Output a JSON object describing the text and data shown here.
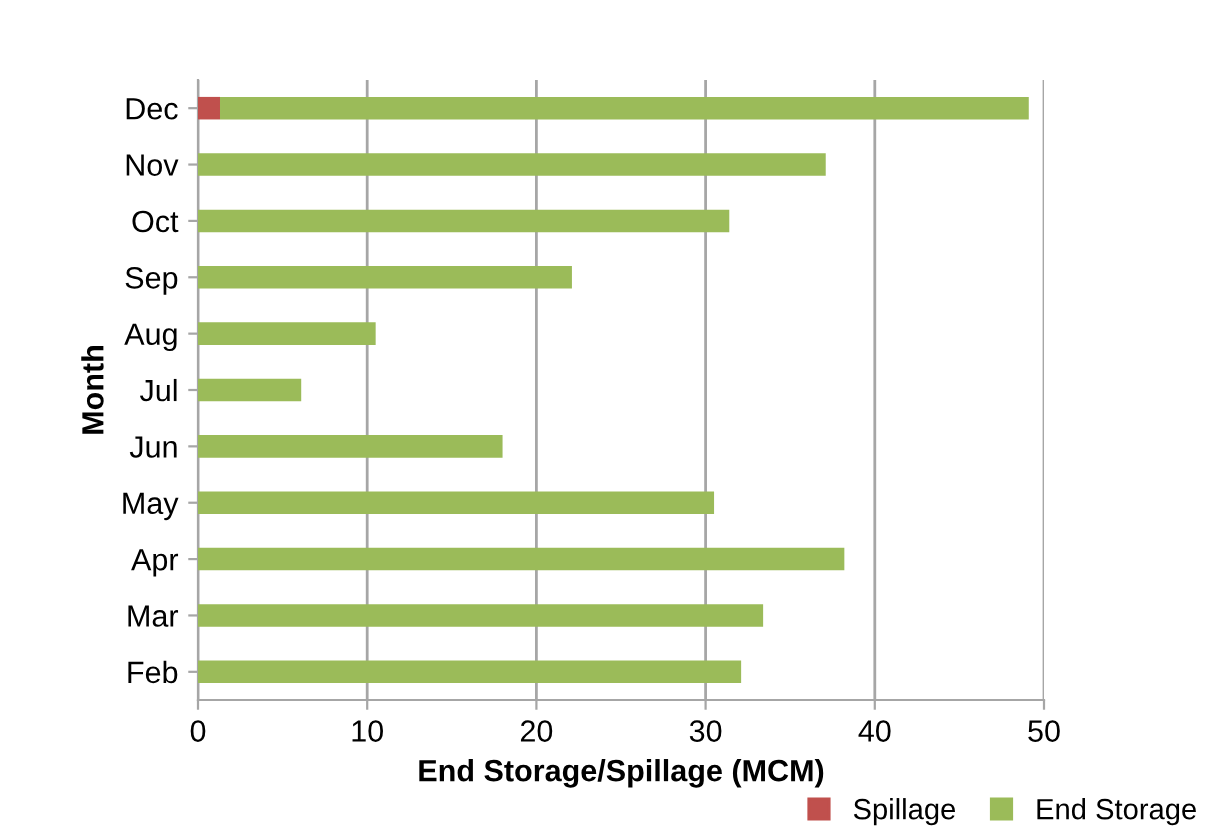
{
  "chart_data": {
    "type": "bar",
    "orientation": "horizontal",
    "stacked": true,
    "xlabel": "End Storage/Spillage (MCM)",
    "ylabel": "Month",
    "categories": [
      "Dec",
      "Nov",
      "Oct",
      "Sep",
      "Aug",
      "Jul",
      "Jun",
      "May",
      "Apr",
      "Mar",
      "Feb"
    ],
    "series": [
      {
        "name": "Spillage",
        "color": "#c0504d",
        "values": [
          1.3,
          0,
          0,
          0,
          0,
          0,
          0,
          0,
          0,
          0,
          0
        ]
      },
      {
        "name": "End Storage",
        "color": "#9bbb59",
        "values": [
          47.8,
          37.1,
          31.4,
          22.1,
          10.5,
          6.1,
          18.0,
          30.5,
          38.2,
          33.4,
          32.1
        ]
      }
    ],
    "xlim": [
      0,
      50
    ],
    "xticks": [
      0,
      10,
      20,
      30,
      40,
      50
    ],
    "grid": "x",
    "legend": "bottom"
  }
}
